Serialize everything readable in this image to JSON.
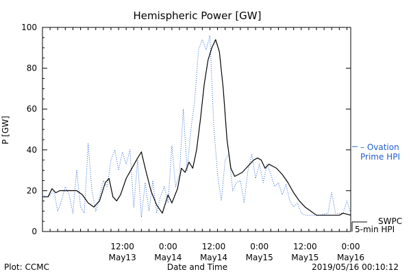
{
  "chart_data": {
    "type": "line",
    "title": "Hemispheric Power [GW]",
    "ylabel": "P [GW]",
    "xlabel": "Date and Time",
    "ylim": [
      0,
      100
    ],
    "yticks": [
      0,
      20,
      40,
      60,
      80,
      100
    ],
    "xlim": [
      "2019-05-12 15:00",
      "2019-05-16 00:00"
    ],
    "xticks": [
      {
        "time": "2019-05-13 12:00",
        "top": "12:00",
        "bottom": "May13"
      },
      {
        "time": "2019-05-14 00:00",
        "top": "0:00",
        "bottom": "May14"
      },
      {
        "time": "2019-05-14 12:00",
        "top": "12:00",
        "bottom": "May14"
      },
      {
        "time": "2019-05-15 00:00",
        "top": "0:00",
        "bottom": "May15"
      },
      {
        "time": "2019-05-15 12:00",
        "top": "12:00",
        "bottom": "May15"
      },
      {
        "time": "2019-05-16 00:00",
        "top": "0:00",
        "bottom": "May16"
      }
    ],
    "series": [
      {
        "name": "SWPC 5-min HPI",
        "color": "#000000",
        "style": "solid",
        "points": [
          [
            "2019-05-12 15:00",
            17
          ],
          [
            "2019-05-12 16:30",
            17
          ],
          [
            "2019-05-12 17:30",
            21
          ],
          [
            "2019-05-12 18:30",
            19
          ],
          [
            "2019-05-12 19:30",
            20
          ],
          [
            "2019-05-12 21:00",
            20
          ],
          [
            "2019-05-12 22:30",
            20
          ],
          [
            "2019-05-13 00:00",
            20
          ],
          [
            "2019-05-13 01:30",
            18
          ],
          [
            "2019-05-13 03:00",
            14
          ],
          [
            "2019-05-13 04:30",
            12
          ],
          [
            "2019-05-13 06:00",
            15
          ],
          [
            "2019-05-13 07:30",
            24
          ],
          [
            "2019-05-13 08:30",
            26
          ],
          [
            "2019-05-13 09:30",
            17
          ],
          [
            "2019-05-13 10:30",
            15
          ],
          [
            "2019-05-13 11:30",
            18
          ],
          [
            "2019-05-13 13:00",
            26
          ],
          [
            "2019-05-13 14:30",
            31
          ],
          [
            "2019-05-13 16:00",
            36
          ],
          [
            "2019-05-13 17:00",
            39
          ],
          [
            "2019-05-13 18:00",
            31
          ],
          [
            "2019-05-13 19:30",
            20
          ],
          [
            "2019-05-13 21:00",
            13
          ],
          [
            "2019-05-13 22:30",
            9
          ],
          [
            "2019-05-14 00:00",
            18
          ],
          [
            "2019-05-14 01:00",
            14
          ],
          [
            "2019-05-14 02:30",
            21
          ],
          [
            "2019-05-14 03:30",
            31
          ],
          [
            "2019-05-14 04:30",
            29
          ],
          [
            "2019-05-14 05:30",
            34
          ],
          [
            "2019-05-14 06:30",
            31
          ],
          [
            "2019-05-14 07:30",
            40
          ],
          [
            "2019-05-14 08:30",
            55
          ],
          [
            "2019-05-14 09:30",
            72
          ],
          [
            "2019-05-14 10:30",
            84
          ],
          [
            "2019-05-14 11:30",
            90
          ],
          [
            "2019-05-14 12:30",
            94
          ],
          [
            "2019-05-14 13:30",
            88
          ],
          [
            "2019-05-14 14:30",
            70
          ],
          [
            "2019-05-14 15:30",
            45
          ],
          [
            "2019-05-14 16:30",
            31
          ],
          [
            "2019-05-14 17:30",
            27
          ],
          [
            "2019-05-14 18:30",
            28
          ],
          [
            "2019-05-14 19:30",
            29
          ],
          [
            "2019-05-14 21:00",
            32
          ],
          [
            "2019-05-14 22:30",
            35
          ],
          [
            "2019-05-14 23:30",
            36
          ],
          [
            "2019-05-15 00:30",
            35
          ],
          [
            "2019-05-15 01:30",
            31
          ],
          [
            "2019-05-15 02:30",
            33
          ],
          [
            "2019-05-15 03:30",
            32
          ],
          [
            "2019-05-15 04:30",
            31
          ],
          [
            "2019-05-15 06:00",
            28
          ],
          [
            "2019-05-15 07:30",
            24
          ],
          [
            "2019-05-15 09:00",
            19
          ],
          [
            "2019-05-15 10:30",
            15
          ],
          [
            "2019-05-15 12:00",
            12
          ],
          [
            "2019-05-15 13:30",
            10
          ],
          [
            "2019-05-15 15:00",
            8
          ],
          [
            "2019-05-15 18:00",
            8
          ],
          [
            "2019-05-15 21:00",
            8
          ],
          [
            "2019-05-15 22:00",
            9
          ],
          [
            "2019-05-16 00:00",
            8
          ]
        ]
      },
      {
        "name": "Ovation Prime HPI",
        "color": "#1f5fd0",
        "style": "dotted",
        "points": [
          [
            "2019-05-12 15:00",
            18
          ],
          [
            "2019-05-12 16:00",
            17
          ],
          [
            "2019-05-12 17:00",
            18
          ],
          [
            "2019-05-12 18:00",
            20
          ],
          [
            "2019-05-12 19:00",
            10
          ],
          [
            "2019-05-12 20:00",
            15
          ],
          [
            "2019-05-12 21:00",
            22
          ],
          [
            "2019-05-12 22:00",
            18
          ],
          [
            "2019-05-12 23:00",
            9
          ],
          [
            "2019-05-13 00:00",
            30
          ],
          [
            "2019-05-13 01:00",
            12
          ],
          [
            "2019-05-13 02:00",
            9
          ],
          [
            "2019-05-13 03:00",
            43
          ],
          [
            "2019-05-13 04:00",
            20
          ],
          [
            "2019-05-13 05:00",
            10
          ],
          [
            "2019-05-13 06:00",
            17
          ],
          [
            "2019-05-13 07:00",
            25
          ],
          [
            "2019-05-13 08:00",
            22
          ],
          [
            "2019-05-13 09:00",
            35
          ],
          [
            "2019-05-13 10:00",
            40
          ],
          [
            "2019-05-13 11:00",
            30
          ],
          [
            "2019-05-13 12:00",
            39
          ],
          [
            "2019-05-13 13:00",
            33
          ],
          [
            "2019-05-13 14:00",
            40
          ],
          [
            "2019-05-13 15:00",
            12
          ],
          [
            "2019-05-13 16:00",
            35
          ],
          [
            "2019-05-13 17:00",
            7
          ],
          [
            "2019-05-13 18:00",
            24
          ],
          [
            "2019-05-13 19:00",
            10
          ],
          [
            "2019-05-13 20:00",
            25
          ],
          [
            "2019-05-13 21:00",
            9
          ],
          [
            "2019-05-13 22:00",
            17
          ],
          [
            "2019-05-13 23:00",
            22
          ],
          [
            "2019-05-14 00:00",
            14
          ],
          [
            "2019-05-14 01:00",
            42
          ],
          [
            "2019-05-14 02:00",
            22
          ],
          [
            "2019-05-14 03:00",
            28
          ],
          [
            "2019-05-14 04:00",
            60
          ],
          [
            "2019-05-14 05:00",
            30
          ],
          [
            "2019-05-14 06:00",
            50
          ],
          [
            "2019-05-14 07:00",
            64
          ],
          [
            "2019-05-14 08:00",
            89
          ],
          [
            "2019-05-14 09:00",
            94
          ],
          [
            "2019-05-14 10:00",
            89
          ],
          [
            "2019-05-14 11:00",
            96
          ],
          [
            "2019-05-14 12:00",
            52
          ],
          [
            "2019-05-14 13:00",
            28
          ],
          [
            "2019-05-14 14:00",
            15
          ],
          [
            "2019-05-14 15:00",
            35
          ],
          [
            "2019-05-14 16:00",
            38
          ],
          [
            "2019-05-14 17:00",
            20
          ],
          [
            "2019-05-14 18:00",
            24
          ],
          [
            "2019-05-14 19:00",
            25
          ],
          [
            "2019-05-14 20:00",
            14
          ],
          [
            "2019-05-14 21:00",
            30
          ],
          [
            "2019-05-14 22:00",
            38
          ],
          [
            "2019-05-14 23:00",
            26
          ],
          [
            "2019-05-15 00:00",
            33
          ],
          [
            "2019-05-15 01:00",
            24
          ],
          [
            "2019-05-15 02:00",
            33
          ],
          [
            "2019-05-15 03:00",
            28
          ],
          [
            "2019-05-15 04:00",
            22
          ],
          [
            "2019-05-15 05:00",
            24
          ],
          [
            "2019-05-15 06:00",
            18
          ],
          [
            "2019-05-15 07:00",
            23
          ],
          [
            "2019-05-15 08:00",
            15
          ],
          [
            "2019-05-15 09:00",
            12
          ],
          [
            "2019-05-15 10:00",
            14
          ],
          [
            "2019-05-15 11:00",
            9
          ],
          [
            "2019-05-15 12:00",
            8
          ],
          [
            "2019-05-15 14:00",
            8
          ],
          [
            "2019-05-15 16:00",
            8
          ],
          [
            "2019-05-15 18:00",
            9
          ],
          [
            "2019-05-15 19:00",
            19
          ],
          [
            "2019-05-15 20:00",
            9
          ],
          [
            "2019-05-15 22:00",
            9
          ],
          [
            "2019-05-15 23:00",
            15
          ],
          [
            "2019-05-16 00:00",
            9
          ]
        ]
      }
    ]
  },
  "legend": {
    "swpc_line1": "SWPC",
    "swpc_line2": "5-min HPI",
    "ovation_line1": "– Ovation",
    "ovation_line2": "Prime HPI"
  },
  "footer": {
    "plot_credit": "Plot: CCMC",
    "timestamp": "2019/05/16 00:10:12"
  }
}
